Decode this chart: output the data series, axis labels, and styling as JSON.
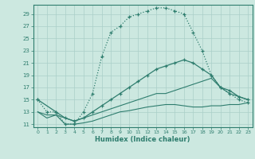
{
  "xlabel": "Humidex (Indice chaleur)",
  "bg_color": "#cce8e0",
  "grid_color": "#aacfc8",
  "line_color": "#2e7d6e",
  "xlim": [
    -0.5,
    23.5
  ],
  "ylim": [
    10.5,
    30.5
  ],
  "yticks": [
    11,
    13,
    15,
    17,
    19,
    21,
    23,
    25,
    27,
    29
  ],
  "xticks": [
    0,
    1,
    2,
    3,
    4,
    5,
    6,
    7,
    8,
    9,
    10,
    11,
    12,
    13,
    14,
    15,
    16,
    17,
    18,
    19,
    20,
    21,
    22,
    23
  ],
  "line1_x": [
    0,
    1,
    2,
    3,
    4,
    5,
    6,
    7,
    8,
    9,
    10,
    11,
    12,
    13,
    14,
    15,
    16,
    17,
    18,
    19,
    20,
    21,
    22,
    23
  ],
  "line1_y": [
    15,
    13,
    13,
    11,
    11,
    13,
    16,
    22,
    26,
    27,
    28.5,
    29,
    29.5,
    30,
    30,
    29.5,
    29,
    26,
    23,
    19,
    17,
    16,
    15,
    14.5
  ],
  "line2_x": [
    0,
    2,
    3,
    4,
    5,
    6,
    7,
    8,
    9,
    10,
    11,
    12,
    13,
    14,
    15,
    16,
    17,
    18,
    19,
    20,
    21,
    22,
    23
  ],
  "line2_y": [
    15,
    13,
    12,
    11.5,
    12,
    13,
    14,
    15,
    16,
    17,
    18,
    19,
    20,
    20.5,
    21,
    21.5,
    21,
    20,
    19,
    17,
    16.5,
    15.5,
    15
  ],
  "line3_x": [
    0,
    1,
    2,
    3,
    4,
    5,
    6,
    7,
    8,
    9,
    10,
    11,
    12,
    13,
    14,
    15,
    16,
    17,
    18,
    19,
    20,
    21,
    22,
    23
  ],
  "line3_y": [
    13,
    12.5,
    12.5,
    12,
    11.5,
    12,
    12.5,
    13,
    13.5,
    14,
    14.5,
    15,
    15.5,
    16,
    16,
    16.5,
    17,
    17.5,
    18,
    18.5,
    17,
    16,
    15.5,
    15
  ],
  "line4_x": [
    0,
    1,
    2,
    3,
    4,
    5,
    6,
    7,
    8,
    9,
    10,
    11,
    12,
    13,
    14,
    15,
    16,
    17,
    18,
    19,
    20,
    21,
    22,
    23
  ],
  "line4_y": [
    13,
    12,
    12.5,
    11,
    11,
    11.2,
    11.5,
    12,
    12.5,
    13,
    13.2,
    13.5,
    13.8,
    14,
    14.2,
    14.2,
    14,
    13.8,
    13.8,
    14,
    14,
    14.2,
    14.2,
    14.5
  ]
}
